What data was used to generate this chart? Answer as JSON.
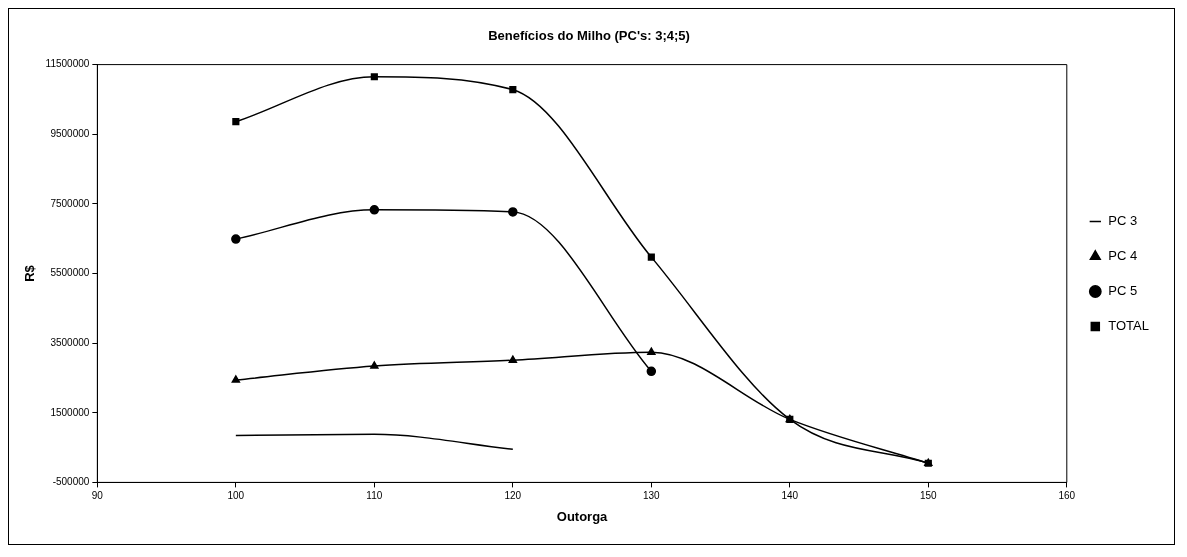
{
  "chart_data": {
    "type": "line",
    "title": "Benefícios do Milho (PC's: 3;4;5)",
    "xlabel": "Outorga",
    "ylabel": "R$",
    "xlim": [
      90,
      160
    ],
    "xticks": [
      90,
      100,
      110,
      120,
      130,
      140,
      150,
      160
    ],
    "ylim": [
      -500000,
      11500000
    ],
    "yticks": [
      -500000,
      1500000,
      3500000,
      5500000,
      7500000,
      9500000,
      11500000
    ],
    "grid": false,
    "legend": "right",
    "line_style": "solid",
    "series": [
      {
        "name": "PC 3",
        "color": "#000000",
        "marker": "none",
        "x": [
          100,
          110,
          120
        ],
        "values": [
          850000,
          880000,
          450000
        ]
      },
      {
        "name": "PC 4",
        "color": "#000000",
        "marker": "triangle",
        "x": [
          100,
          110,
          120,
          130,
          140,
          150
        ],
        "values": [
          2440000,
          2840000,
          3010000,
          3240000,
          1310000,
          50000
        ]
      },
      {
        "name": "PC 5",
        "color": "#000000",
        "marker": "circle",
        "x": [
          100,
          110,
          120,
          130
        ],
        "values": [
          6490000,
          7330000,
          7270000,
          2690000
        ]
      },
      {
        "name": "TOTAL",
        "color": "#000000",
        "marker": "square",
        "x": [
          100,
          110,
          120,
          130,
          140,
          150
        ],
        "values": [
          9860000,
          11150000,
          10780000,
          5970000,
          1310000,
          50000
        ]
      }
    ]
  }
}
